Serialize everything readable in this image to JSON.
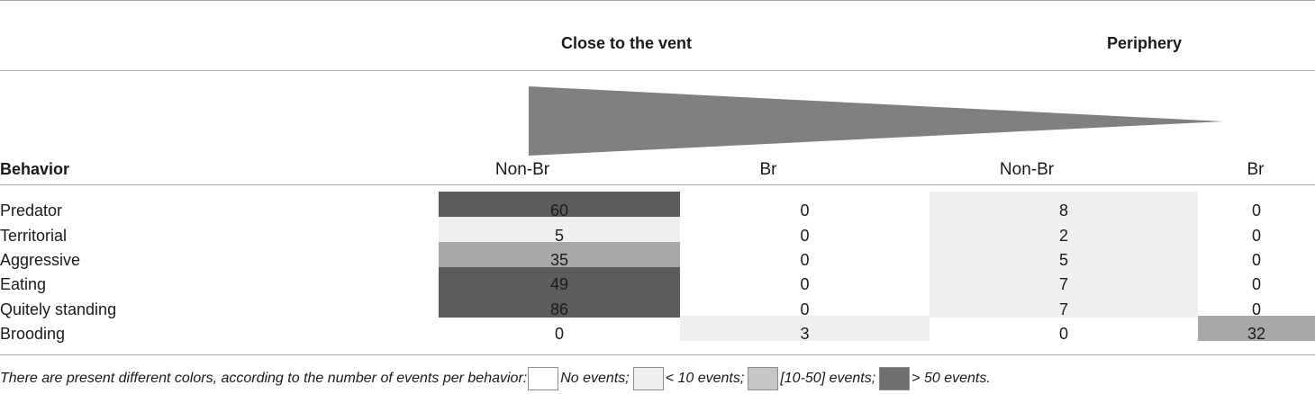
{
  "group_titles": {
    "close": "Close to the vent",
    "periphery": "Periphery"
  },
  "header": {
    "behavior": "Behavior",
    "cols": [
      "Non-Br",
      "Br",
      "Non-Br",
      "Br"
    ]
  },
  "rows": [
    {
      "label": "Predator",
      "values": [
        "60",
        "0",
        "8",
        "0"
      ]
    },
    {
      "label": "Territorial",
      "values": [
        "5",
        "0",
        "2",
        "0"
      ]
    },
    {
      "label": "Aggressive",
      "values": [
        "35",
        "0",
        "5",
        "0"
      ]
    },
    {
      "label": "Eating",
      "values": [
        "49",
        "0",
        "7",
        "0"
      ]
    },
    {
      "label": "Quitely standing",
      "values": [
        "86",
        "0",
        "7",
        "0"
      ]
    },
    {
      "label": "Brooding",
      "values": [
        "0",
        "3",
        "0",
        "32"
      ]
    }
  ],
  "footnote": {
    "intro": "There are present different colors, according to the number of events per behavior:",
    "legend": [
      {
        "label": "No events;",
        "color": "#ffffff"
      },
      {
        "label": "< 10 events;",
        "color": "#efefef"
      },
      {
        "label": "[10-50] events;",
        "color": "#c6c6c6"
      },
      {
        "label": "> 50 events.",
        "color": "#6e6e6e"
      }
    ]
  },
  "colors": {
    "wedge": "#808080",
    "over50": "#5c5c5c",
    "range10to50": "#a8a8a8",
    "under10": "#efefef",
    "none": "#ffffff"
  }
}
